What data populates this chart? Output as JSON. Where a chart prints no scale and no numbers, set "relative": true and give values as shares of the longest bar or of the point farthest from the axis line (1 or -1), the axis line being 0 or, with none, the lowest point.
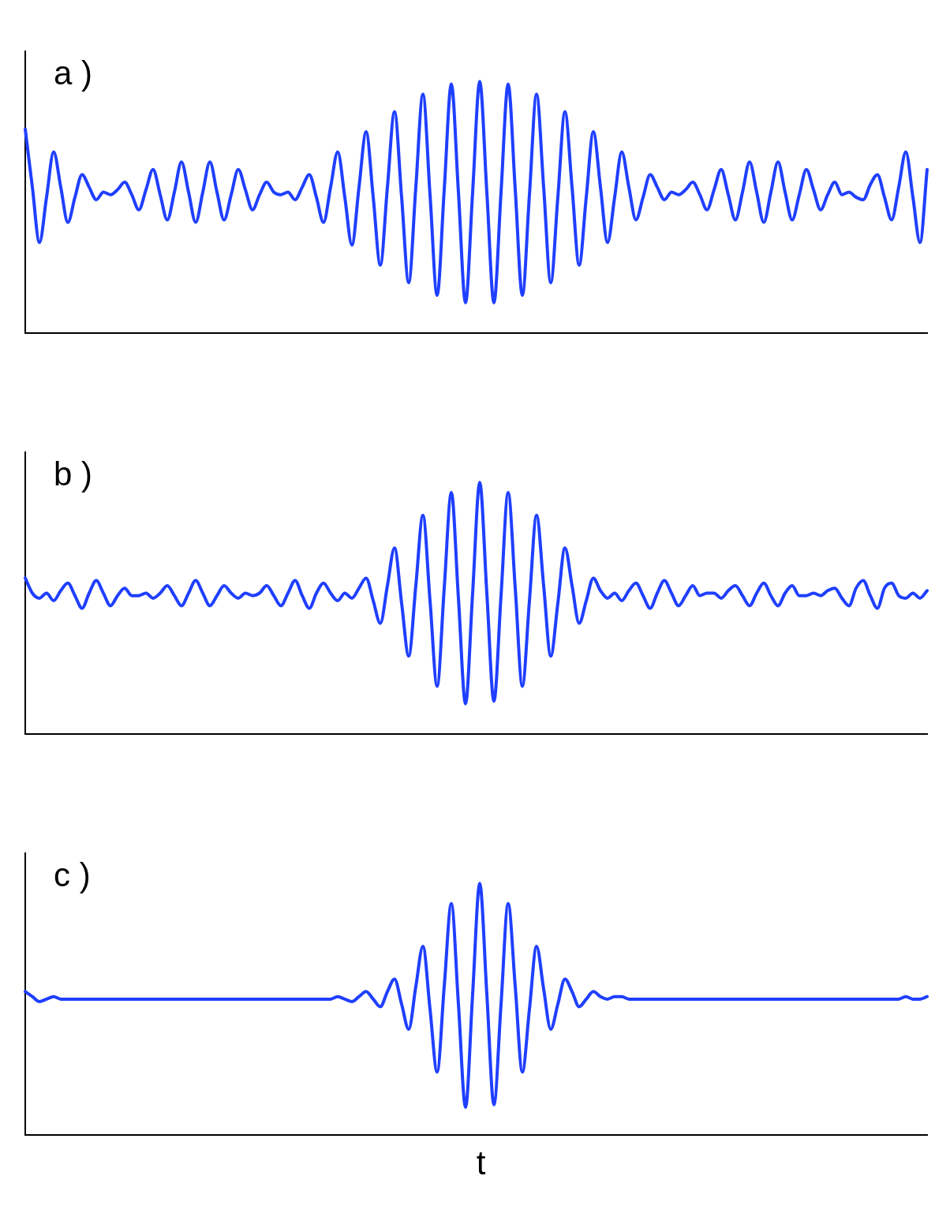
{
  "chart_data": [
    {
      "type": "line",
      "title": "a )",
      "relative": true,
      "categories": [
        null,
        null,
        null,
        null,
        null,
        null,
        null,
        null,
        null,
        null,
        null,
        null,
        null,
        null,
        null,
        null,
        null,
        null,
        null,
        null,
        null,
        null,
        null,
        null,
        null,
        null,
        null,
        null,
        null,
        null,
        null,
        null,
        null,
        null,
        null,
        null,
        null,
        null,
        null,
        null,
        null,
        null,
        null,
        null,
        null,
        null,
        null,
        null,
        null,
        null,
        null,
        null,
        null,
        null,
        null,
        null,
        null,
        null,
        null,
        null,
        null,
        null,
        null,
        null,
        null,
        null,
        null,
        null,
        null,
        null,
        null,
        null,
        null,
        null,
        null,
        null,
        null,
        null,
        null,
        null,
        null,
        null,
        null,
        null,
        null,
        null,
        null,
        null,
        null,
        null,
        null,
        null,
        null,
        null,
        null,
        null,
        null,
        null,
        null,
        null,
        null,
        null,
        null,
        null,
        null,
        null,
        null,
        null,
        null,
        null,
        null,
        null,
        null,
        null,
        null,
        null,
        null,
        null,
        null,
        null,
        null,
        null,
        null,
        null,
        null,
        null,
        null,
        null
      ],
      "series": [
        {
          "color": "#1f3fff",
          "values": [
            0.81,
            0.58,
            0.36,
            0.54,
            0.72,
            0.58,
            0.44,
            0.54,
            0.63,
            0.58,
            0.53,
            0.56,
            0.55,
            0.57,
            0.6,
            0.55,
            0.49,
            0.57,
            0.65,
            0.55,
            0.45,
            0.56,
            0.68,
            0.56,
            0.44,
            0.56,
            0.68,
            0.56,
            0.45,
            0.55,
            0.65,
            0.57,
            0.49,
            0.55,
            0.6,
            0.56,
            0.55,
            0.56,
            0.53,
            0.58,
            0.63,
            0.54,
            0.44,
            0.58,
            0.72,
            0.54,
            0.35,
            0.58,
            0.8,
            0.54,
            0.27,
            0.58,
            0.88,
            0.54,
            0.2,
            0.58,
            0.95,
            0.55,
            0.15,
            0.57,
            0.99,
            0.56,
            0.12,
            0.56,
            1.0,
            0.56,
            0.12,
            0.56,
            0.99,
            0.57,
            0.15,
            0.55,
            0.95,
            0.58,
            0.2,
            0.54,
            0.88,
            0.58,
            0.27,
            0.54,
            0.8,
            0.58,
            0.36,
            0.54,
            0.72,
            0.58,
            0.45,
            0.54,
            0.63,
            0.58,
            0.53,
            0.56,
            0.55,
            0.57,
            0.6,
            0.55,
            0.49,
            0.57,
            0.65,
            0.55,
            0.45,
            0.56,
            0.68,
            0.56,
            0.44,
            0.56,
            0.68,
            0.56,
            0.45,
            0.55,
            0.65,
            0.57,
            0.49,
            0.55,
            0.6,
            0.55,
            0.56,
            0.54,
            0.53,
            0.59,
            0.63,
            0.54,
            0.45,
            0.58,
            0.72,
            0.54,
            0.36,
            0.65
          ]
        }
      ]
    },
    {
      "type": "line",
      "title": "b )",
      "relative": true,
      "categories": [
        null,
        null,
        null,
        null,
        null,
        null,
        null,
        null,
        null,
        null,
        null,
        null,
        null,
        null,
        null,
        null,
        null,
        null,
        null,
        null,
        null,
        null,
        null,
        null,
        null,
        null,
        null,
        null,
        null,
        null,
        null,
        null,
        null,
        null,
        null,
        null,
        null,
        null,
        null,
        null,
        null,
        null,
        null,
        null,
        null,
        null,
        null,
        null,
        null,
        null,
        null,
        null,
        null,
        null,
        null,
        null,
        null,
        null,
        null,
        null,
        null,
        null,
        null,
        null,
        null,
        null,
        null,
        null,
        null,
        null,
        null,
        null,
        null,
        null,
        null,
        null,
        null,
        null,
        null,
        null,
        null,
        null,
        null,
        null,
        null,
        null,
        null,
        null,
        null,
        null,
        null,
        null,
        null,
        null,
        null,
        null,
        null,
        null,
        null,
        null,
        null,
        null,
        null,
        null,
        null,
        null,
        null,
        null,
        null,
        null,
        null,
        null,
        null,
        null,
        null,
        null,
        null,
        null,
        null,
        null,
        null,
        null,
        null,
        null,
        null,
        null,
        null,
        null
      ],
      "series": [
        {
          "color": "#1f3fff",
          "values": [
            0.62,
            0.56,
            0.54,
            0.56,
            0.53,
            0.57,
            0.6,
            0.55,
            0.5,
            0.56,
            0.61,
            0.56,
            0.51,
            0.55,
            0.58,
            0.55,
            0.55,
            0.56,
            0.54,
            0.56,
            0.59,
            0.55,
            0.51,
            0.56,
            0.61,
            0.56,
            0.51,
            0.55,
            0.59,
            0.56,
            0.54,
            0.56,
            0.55,
            0.56,
            0.59,
            0.55,
            0.51,
            0.56,
            0.61,
            0.55,
            0.5,
            0.56,
            0.6,
            0.56,
            0.53,
            0.56,
            0.54,
            0.58,
            0.62,
            0.53,
            0.44,
            0.59,
            0.74,
            0.52,
            0.31,
            0.59,
            0.87,
            0.53,
            0.19,
            0.58,
            0.96,
            0.54,
            0.12,
            0.56,
            1.0,
            0.56,
            0.13,
            0.55,
            0.96,
            0.58,
            0.19,
            0.53,
            0.87,
            0.59,
            0.31,
            0.52,
            0.74,
            0.59,
            0.44,
            0.53,
            0.62,
            0.57,
            0.54,
            0.56,
            0.53,
            0.57,
            0.6,
            0.55,
            0.5,
            0.56,
            0.61,
            0.56,
            0.51,
            0.55,
            0.59,
            0.55,
            0.56,
            0.56,
            0.54,
            0.57,
            0.59,
            0.55,
            0.51,
            0.56,
            0.6,
            0.55,
            0.51,
            0.56,
            0.59,
            0.55,
            0.55,
            0.56,
            0.55,
            0.57,
            0.58,
            0.54,
            0.51,
            0.58,
            0.61,
            0.55,
            0.5,
            0.58,
            0.6,
            0.55,
            0.54,
            0.56,
            0.54,
            0.57
          ]
        }
      ]
    },
    {
      "type": "line",
      "title": "c )",
      "xlabel": "t",
      "relative": true,
      "categories": [
        null,
        null,
        null,
        null,
        null,
        null,
        null,
        null,
        null,
        null,
        null,
        null,
        null,
        null,
        null,
        null,
        null,
        null,
        null,
        null,
        null,
        null,
        null,
        null,
        null,
        null,
        null,
        null,
        null,
        null,
        null,
        null,
        null,
        null,
        null,
        null,
        null,
        null,
        null,
        null,
        null,
        null,
        null,
        null,
        null,
        null,
        null,
        null,
        null,
        null,
        null,
        null,
        null,
        null,
        null,
        null,
        null,
        null,
        null,
        null,
        null,
        null,
        null,
        null,
        null,
        null,
        null,
        null,
        null,
        null,
        null,
        null,
        null,
        null,
        null,
        null,
        null,
        null,
        null,
        null,
        null,
        null,
        null,
        null,
        null,
        null,
        null,
        null,
        null,
        null,
        null,
        null,
        null,
        null,
        null,
        null,
        null,
        null,
        null,
        null,
        null,
        null,
        null,
        null,
        null,
        null,
        null,
        null,
        null,
        null,
        null,
        null,
        null,
        null,
        null,
        null,
        null,
        null,
        null,
        null,
        null,
        null,
        null,
        null,
        null,
        null,
        null,
        null
      ],
      "series": [
        {
          "color": "#1f3fff",
          "values": [
            0.57,
            0.55,
            0.53,
            0.54,
            0.55,
            0.54,
            0.54,
            0.54,
            0.54,
            0.54,
            0.54,
            0.54,
            0.54,
            0.54,
            0.54,
            0.54,
            0.54,
            0.54,
            0.54,
            0.54,
            0.54,
            0.54,
            0.54,
            0.54,
            0.54,
            0.54,
            0.54,
            0.54,
            0.54,
            0.54,
            0.54,
            0.54,
            0.54,
            0.54,
            0.54,
            0.54,
            0.54,
            0.54,
            0.54,
            0.54,
            0.54,
            0.54,
            0.54,
            0.54,
            0.55,
            0.54,
            0.53,
            0.55,
            0.57,
            0.54,
            0.51,
            0.57,
            0.62,
            0.52,
            0.42,
            0.59,
            0.75,
            0.5,
            0.25,
            0.59,
            0.92,
            0.52,
            0.11,
            0.56,
            1.0,
            0.56,
            0.12,
            0.52,
            0.92,
            0.59,
            0.25,
            0.5,
            0.75,
            0.58,
            0.42,
            0.52,
            0.62,
            0.57,
            0.51,
            0.54,
            0.57,
            0.55,
            0.54,
            0.55,
            0.55,
            0.54,
            0.54,
            0.54,
            0.54,
            0.54,
            0.54,
            0.54,
            0.54,
            0.54,
            0.54,
            0.54,
            0.54,
            0.54,
            0.54,
            0.54,
            0.54,
            0.54,
            0.54,
            0.54,
            0.54,
            0.54,
            0.54,
            0.54,
            0.54,
            0.54,
            0.54,
            0.54,
            0.54,
            0.54,
            0.54,
            0.54,
            0.54,
            0.54,
            0.54,
            0.54,
            0.54,
            0.54,
            0.54,
            0.54,
            0.55,
            0.54,
            0.54,
            0.55
          ]
        }
      ]
    }
  ]
}
